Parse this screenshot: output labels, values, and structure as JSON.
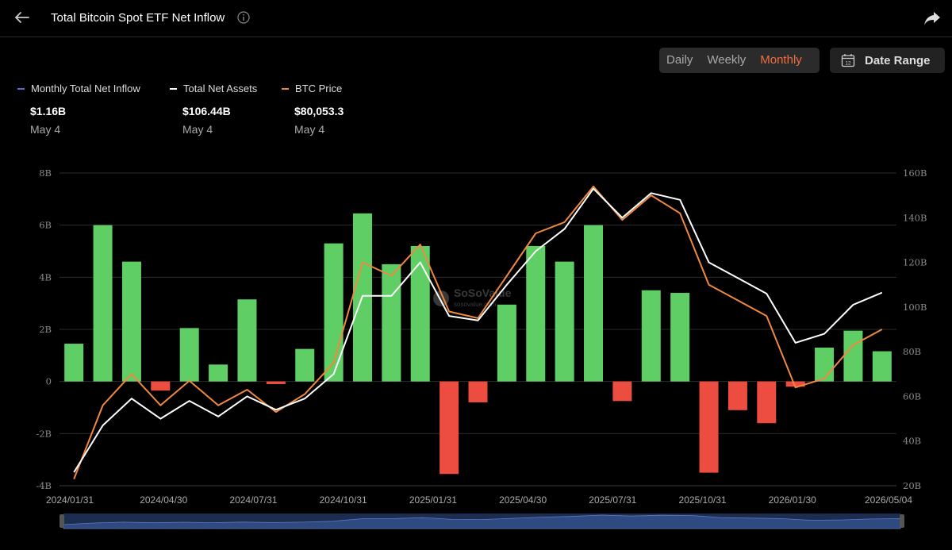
{
  "header": {
    "title": "Total Bitcoin Spot ETF Net Inflow"
  },
  "controls": {
    "periods": [
      "Daily",
      "Weekly",
      "Monthly"
    ],
    "active_period": "Monthly",
    "date_range_label": "Date Range",
    "date_range_icon_text": "12"
  },
  "legend": [
    {
      "name": "Monthly Total Net Inflow",
      "value": "$1.16B",
      "date": "May 4",
      "color": "#5b6bd6"
    },
    {
      "name": "Total Net Assets",
      "value": "$106.44B",
      "date": "May 4",
      "color": "#ffffff"
    },
    {
      "name": "BTC Price",
      "value": "$80,053.3",
      "date": "May 4",
      "color": "#f0883e"
    }
  ],
  "watermark": {
    "brand": "SoSoValue",
    "sub": "sosovalue.com"
  },
  "chart_data": {
    "type": "bar",
    "colors": {
      "positive": "#5fcf65",
      "negative": "#ed4d40",
      "assets": "#ffffff",
      "price": "#f0883e"
    },
    "y_left": {
      "ticks": [
        "8B",
        "6B",
        "4B",
        "2B",
        "0",
        "-2B",
        "-4B"
      ],
      "min": -4,
      "max": 8,
      "unit": "B"
    },
    "y_right": {
      "ticks": [
        "160B",
        "140B",
        "120B",
        "100B",
        "80B",
        "60B",
        "40B",
        "20B"
      ],
      "min": 20,
      "max": 160
    },
    "x_ticks": [
      "2024/01/31",
      "2024/04/30",
      "2024/07/31",
      "2024/10/31",
      "2025/01/31",
      "2025/04/30",
      "2025/07/31",
      "2025/10/31",
      "2026/01/30",
      "2026/05/04"
    ],
    "months": [
      "2024-01",
      "2024-02",
      "2024-03",
      "2024-04",
      "2024-05",
      "2024-06",
      "2024-07",
      "2024-08",
      "2024-09",
      "2024-10",
      "2024-11",
      "2024-12",
      "2025-01",
      "2025-02",
      "2025-03",
      "2025-04",
      "2025-05",
      "2025-06",
      "2025-07",
      "2025-08",
      "2025-09",
      "2025-10",
      "2025-11",
      "2025-12",
      "2026-01",
      "2026-02",
      "2026-03",
      "2026-04",
      "2026-05"
    ],
    "series": [
      {
        "name": "Monthly Total Net Inflow",
        "axis": "left",
        "values": [
          1.45,
          6.0,
          4.6,
          -0.35,
          2.05,
          0.65,
          3.15,
          -0.1,
          1.25,
          5.3,
          6.45,
          4.5,
          5.2,
          -3.55,
          -0.8,
          2.95,
          5.2,
          4.6,
          6.0,
          -0.75,
          3.5,
          3.4,
          -3.5,
          -1.1,
          -1.6,
          -0.2,
          1.3,
          1.95,
          1.16
        ]
      },
      {
        "name": "Total Net Assets",
        "axis": "right",
        "values": [
          26,
          47,
          59,
          50,
          58,
          51,
          60,
          54,
          59,
          70,
          105,
          105,
          120,
          96,
          94,
          110,
          125,
          135,
          153,
          140,
          151,
          148,
          120,
          113,
          106,
          84,
          88,
          101,
          106.44
        ]
      },
      {
        "name": "BTC Price",
        "axis": "right",
        "values": [
          23,
          56,
          70,
          56,
          67,
          56,
          63,
          53,
          61,
          75,
          120,
          114,
          128,
          98,
          95,
          114,
          133,
          138,
          154,
          139,
          150,
          142,
          110,
          103,
          96,
          64,
          68,
          83,
          90
        ]
      }
    ]
  }
}
